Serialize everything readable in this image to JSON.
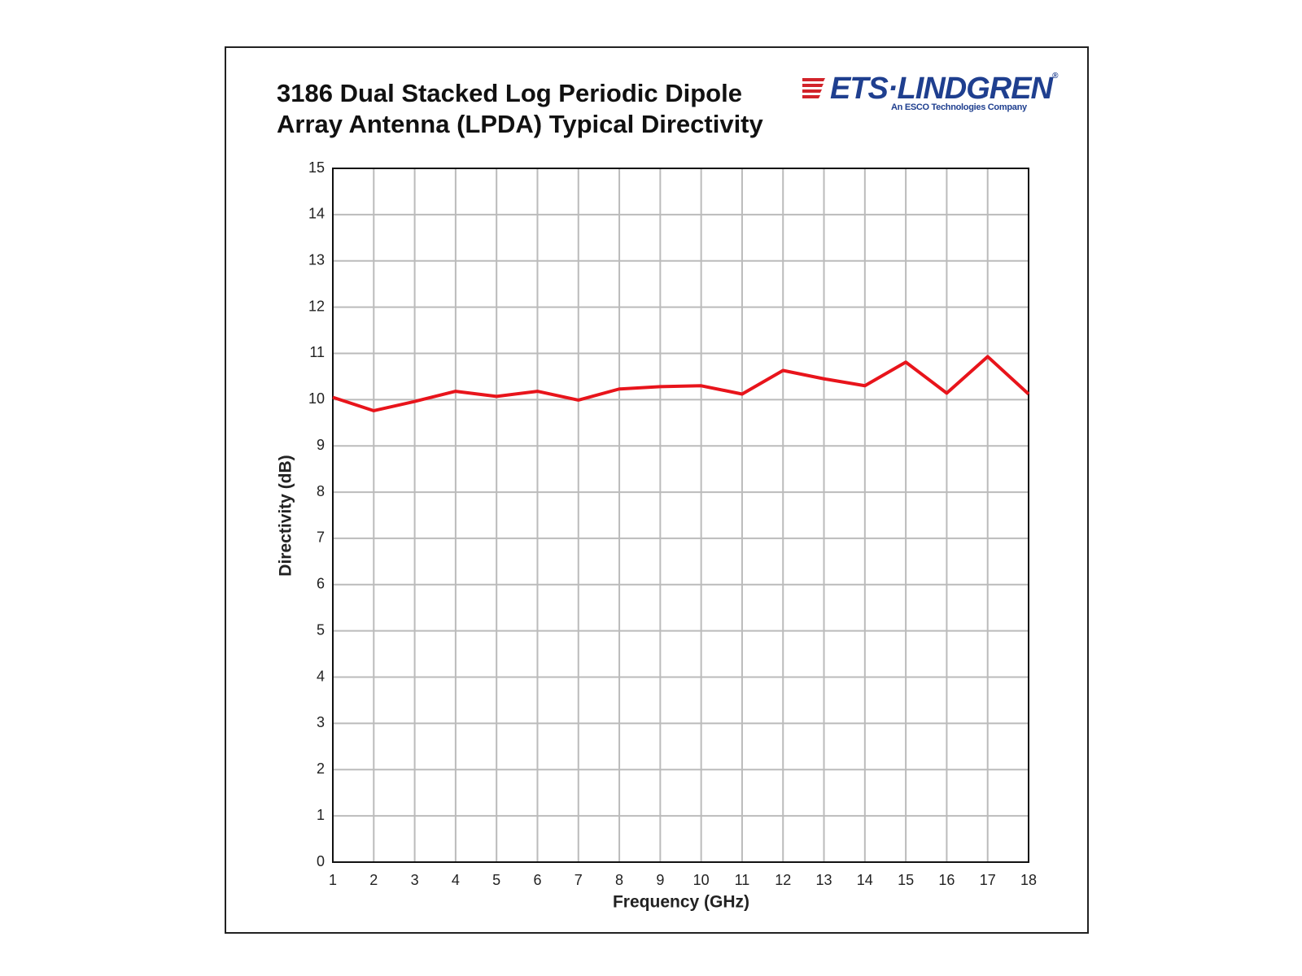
{
  "chart_data": {
    "type": "line",
    "title": "3186 Dual Stacked Log Periodic Dipole Array Antenna (LPDA) Typical Directivity",
    "x_label": "Frequency (GHz)",
    "y_label": "Directivity (dB)",
    "x": [
      1,
      2,
      3,
      4,
      5,
      6,
      7,
      8,
      9,
      10,
      11,
      12,
      13,
      14,
      15,
      16,
      17,
      18
    ],
    "series": [
      {
        "name": "Directivity",
        "color": "#e8141b",
        "values": [
          10.05,
          9.76,
          9.96,
          10.18,
          10.07,
          10.18,
          9.99,
          10.23,
          10.28,
          10.3,
          10.12,
          10.63,
          10.45,
          10.3,
          10.81,
          10.14,
          10.93,
          10.12
        ]
      }
    ],
    "xlim": [
      1,
      18
    ],
    "xticks": [
      1,
      2,
      3,
      4,
      5,
      6,
      7,
      8,
      9,
      10,
      11,
      12,
      13,
      14,
      15,
      16,
      17,
      18
    ],
    "ylim": [
      0,
      15
    ],
    "yticks": [
      0,
      1,
      2,
      3,
      4,
      5,
      6,
      7,
      8,
      9,
      10,
      11,
      12,
      13,
      14,
      15
    ],
    "grid": true
  },
  "logo": {
    "name": "ETS·LINDGREN",
    "mark": "®",
    "tagline": "An ESCO Technologies Company"
  }
}
